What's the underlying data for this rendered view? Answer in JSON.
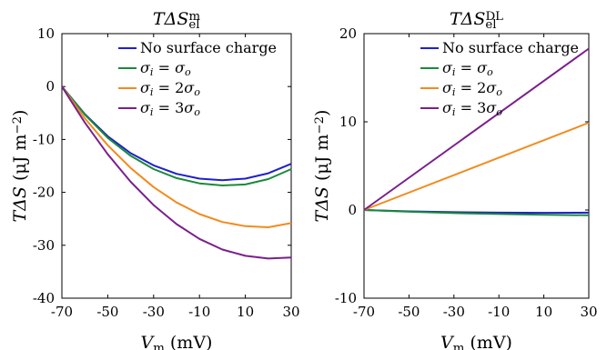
{
  "chart_data": [
    {
      "type": "line",
      "title": "TΔS_el^m",
      "xlabel": "V_m (mV)",
      "ylabel": "TΔS (μJ m^-2)",
      "xlim": [
        -70,
        30
      ],
      "ylim": [
        -40,
        10
      ],
      "xticks": [
        "-70",
        "-50",
        "-30",
        "-10",
        "10",
        "30"
      ],
      "yticks": [
        "10",
        "0",
        "-10",
        "-20",
        "-30",
        "-40"
      ],
      "legend_position": "top-right",
      "grid": false,
      "series": [
        {
          "name": "No surface charge",
          "color": "#1f1fcc",
          "x": [
            -70,
            -60,
            -50,
            -40,
            -30,
            -20,
            -10,
            0,
            10,
            20,
            30
          ],
          "y": [
            0,
            -5.2,
            -9.4,
            -12.6,
            -14.9,
            -16.5,
            -17.4,
            -17.7,
            -17.4,
            -16.4,
            -14.6
          ]
        },
        {
          "name": "σi = σo",
          "color": "#1a8a3a",
          "x": [
            -70,
            -60,
            -50,
            -40,
            -30,
            -20,
            -10,
            0,
            10,
            20,
            30
          ],
          "y": [
            0,
            -5.3,
            -9.7,
            -13.1,
            -15.6,
            -17.3,
            -18.3,
            -18.7,
            -18.5,
            -17.5,
            -15.6
          ]
        },
        {
          "name": "σi = 2σo",
          "color": "#f28b1e",
          "x": [
            -70,
            -60,
            -50,
            -40,
            -30,
            -20,
            -10,
            0,
            10,
            20,
            30
          ],
          "y": [
            0,
            -6.0,
            -11.1,
            -15.4,
            -19.0,
            -21.9,
            -24.1,
            -25.6,
            -26.4,
            -26.6,
            -25.8
          ]
        },
        {
          "name": "σi = 3σo",
          "color": "#7a1f8c",
          "x": [
            -70,
            -60,
            -50,
            -40,
            -30,
            -20,
            -10,
            0,
            10,
            20,
            30
          ],
          "y": [
            0,
            -6.8,
            -12.8,
            -18.0,
            -22.4,
            -26.0,
            -28.8,
            -30.8,
            -32.0,
            -32.5,
            -32.3
          ]
        }
      ]
    },
    {
      "type": "line",
      "title": "TΔS_el^DL",
      "xlabel": "V_m (mV)",
      "ylabel": "TΔS (μJ m^-2)",
      "xlim": [
        -70,
        30
      ],
      "ylim": [
        -10,
        20
      ],
      "xticks": [
        "-70",
        "-50",
        "-30",
        "-10",
        "10",
        "30"
      ],
      "yticks": [
        "20",
        "10",
        "0",
        "-10"
      ],
      "legend_position": "top-right",
      "grid": false,
      "series": [
        {
          "name": "No surface charge",
          "color": "#1f1fcc",
          "x": [
            -70,
            -50,
            -30,
            -10,
            10,
            30
          ],
          "y": [
            0,
            -0.15,
            -0.25,
            -0.3,
            -0.32,
            -0.3
          ]
        },
        {
          "name": "σi = σo",
          "color": "#1a8a3a",
          "x": [
            -70,
            -50,
            -30,
            -10,
            10,
            30
          ],
          "y": [
            0,
            -0.2,
            -0.35,
            -0.45,
            -0.55,
            -0.6
          ]
        },
        {
          "name": "σi = 2σo",
          "color": "#f28b1e",
          "x": [
            -70,
            30
          ],
          "y": [
            0,
            9.9
          ]
        },
        {
          "name": "σi = 3σo",
          "color": "#7a1f8c",
          "x": [
            -70,
            30
          ],
          "y": [
            0,
            18.3
          ]
        }
      ]
    }
  ]
}
